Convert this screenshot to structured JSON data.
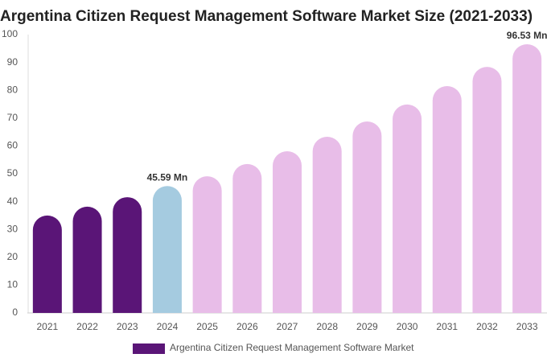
{
  "chart_data": {
    "type": "bar",
    "title": "Argentina Citizen Request Management Software Market Size (2021-2033)",
    "categories": [
      "2021",
      "2022",
      "2023",
      "2024",
      "2025",
      "2026",
      "2027",
      "2028",
      "2029",
      "2030",
      "2031",
      "2032",
      "2033"
    ],
    "series": [
      {
        "name": "Argentina Citizen Request Management Software Market",
        "color": "#5a1577",
        "values": [
          35.0,
          38.2,
          41.6,
          45.59,
          49.1,
          53.5,
          58.1,
          63.3,
          68.8,
          74.9,
          81.5,
          88.4,
          96.53
        ],
        "value_labels": [
          null,
          null,
          null,
          "45.59 Mn",
          null,
          null,
          null,
          null,
          null,
          null,
          null,
          null,
          "96.53 Mn"
        ],
        "colors": [
          "#5a1577",
          "#5a1577",
          "#5a1577",
          "#a5cbe0",
          "#e8bde8",
          "#e8bde8",
          "#e8bde8",
          "#e8bde8",
          "#e8bde8",
          "#e8bde8",
          "#e8bde8",
          "#e8bde8",
          "#e8bde8"
        ]
      }
    ],
    "ylim": [
      0,
      100
    ],
    "yticks": [
      0,
      10,
      20,
      30,
      40,
      50,
      60,
      70,
      80,
      90,
      100
    ],
    "grid": false
  }
}
